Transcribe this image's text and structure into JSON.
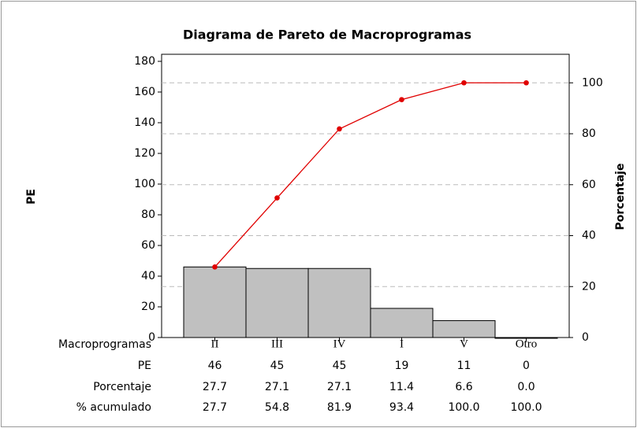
{
  "chart_data": {
    "type": "pareto",
    "title": "Diagrama de Pareto de Macroprogramas",
    "xlabel": "Macroprogramas",
    "ylabel": "PE",
    "y2label": "Porcentaje",
    "categories": [
      "II",
      "III",
      "IV",
      "I",
      "V",
      "Otro"
    ],
    "series": [
      {
        "name": "PE",
        "color": "#c0c0c0",
        "values": [
          46,
          45,
          45,
          19,
          11,
          0
        ]
      },
      {
        "name": "Porcentaje",
        "values": [
          27.7,
          27.1,
          27.1,
          11.4,
          6.6,
          0.0
        ],
        "value_labels": [
          "27.7",
          "27.1",
          "27.1",
          "11.4",
          "6.6",
          "0.0"
        ]
      },
      {
        "name": "% acumulado",
        "axis": "y2",
        "color": "#e00000",
        "values": [
          27.7,
          54.8,
          81.9,
          93.4,
          100.0,
          100.0
        ],
        "value_labels": [
          "27.7",
          "54.8",
          "81.9",
          "93.4",
          "100.0",
          "100.0"
        ]
      }
    ],
    "ylim": [
      0,
      184.6
    ],
    "yticks": [
      0,
      20,
      40,
      60,
      80,
      100,
      120,
      140,
      160,
      180
    ],
    "y2lim": [
      0,
      111.2
    ],
    "y2ticks": [
      0,
      20,
      40,
      60,
      80,
      100
    ],
    "grid": true
  }
}
